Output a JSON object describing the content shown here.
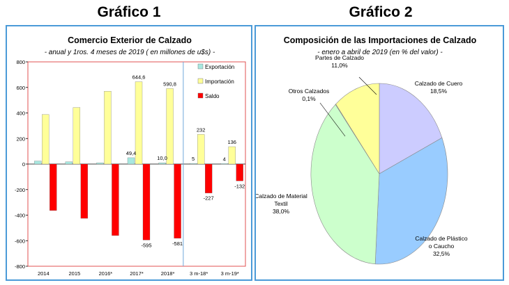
{
  "headings": {
    "left": "Gráfico 1",
    "right": "Gráfico 2"
  },
  "chart_data": [
    {
      "type": "bar",
      "title": "Comercio Exterior de Calzado",
      "subtitle": "- anual y 1ros. 4 meses de 2019  ( en millones de u$s) -",
      "categories": [
        "2014",
        "2015",
        "2016*",
        "2017*",
        "2018*",
        "3 m-18*",
        "3 m-19*"
      ],
      "series": [
        {
          "name": "Exportación",
          "color": "#a8e8e0",
          "values": [
            24,
            18,
            10,
            49.4,
            10.0,
            5,
            4
          ]
        },
        {
          "name": "Importación",
          "color": "#ffff99",
          "values": [
            388,
            443,
            570,
            644.6,
            590.8,
            232,
            136
          ]
        },
        {
          "name": "Saldo",
          "color": "#ff0000",
          "values": [
            -364,
            -425,
            -560,
            -595,
            -581,
            -227,
            -132
          ]
        }
      ],
      "data_labels": [
        {
          "category": "2017*",
          "series": "Importación",
          "text": "644,6"
        },
        {
          "category": "2018*",
          "series": "Importación",
          "text": "590,8"
        },
        {
          "category": "2017*",
          "series": "Exportación",
          "text": "49,4"
        },
        {
          "category": "2018*",
          "series": "Exportación",
          "text": "10,0"
        },
        {
          "category": "3 m-18*",
          "series": "Importación",
          "text": "232"
        },
        {
          "category": "3 m-19*",
          "series": "Importación",
          "text": "136"
        },
        {
          "category": "3 m-18*",
          "series": "Exportación",
          "text": "5"
        },
        {
          "category": "3 m-19*",
          "series": "Exportación",
          "text": "4"
        },
        {
          "category": "2017*",
          "series": "Saldo",
          "text": "-595"
        },
        {
          "category": "2018*",
          "series": "Saldo",
          "text": "-581"
        },
        {
          "category": "3 m-18*",
          "series": "Saldo",
          "text": "-227"
        },
        {
          "category": "3 m-19*",
          "series": "Saldo",
          "text": "-132"
        }
      ],
      "yticks": [
        "800",
        "600",
        "400",
        "200",
        "0",
        "-200",
        "-400",
        "-600",
        "-800"
      ],
      "ylim": [
        -800,
        800
      ],
      "divider_before_category": "3 m-18*",
      "legend_position": "top-right",
      "plot_border_color": "#e05050",
      "divider_color": "#6fa8dc"
    },
    {
      "type": "pie",
      "title": "Composición de las Importaciones de Calzado",
      "subtitle": "- enero a abril de 2019 (en % del valor) -",
      "slices": [
        {
          "label": [
            "Calzado de Cuero"
          ],
          "value_text": "18,5%",
          "value": 18.5,
          "color": "#ccccff"
        },
        {
          "label": [
            "Calzado de Plástico",
            "o Caucho"
          ],
          "value_text": "32,5%",
          "value": 32.5,
          "color": "#99ccff"
        },
        {
          "label": [
            "Calzado de Material",
            "Textil"
          ],
          "value_text": "38,0%",
          "value": 38.0,
          "color": "#ccffcc"
        },
        {
          "label": [
            "Otros Calzados"
          ],
          "value_text": "0,1%",
          "value": 0.1,
          "color": "#ffffcc"
        },
        {
          "label": [
            "Partes de Calzado"
          ],
          "value_text": "11,0%",
          "value": 11.0,
          "color": "#ffff99"
        }
      ]
    }
  ]
}
